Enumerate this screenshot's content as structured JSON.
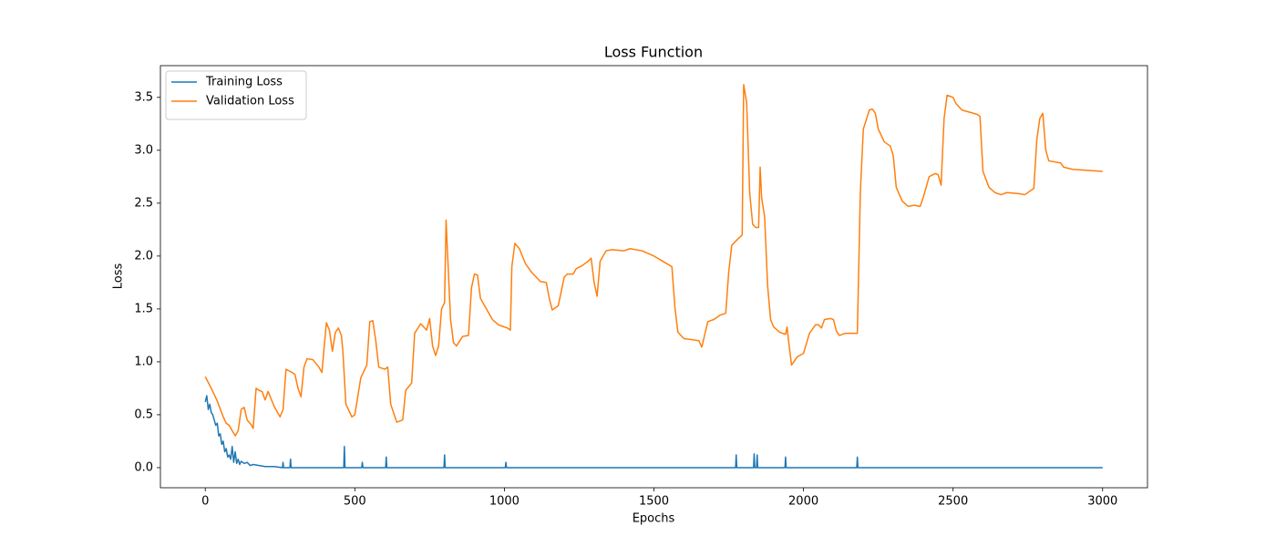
{
  "chart_data": {
    "type": "line",
    "title": "Loss Function",
    "xlabel": "Epochs",
    "ylabel": "Loss",
    "xlim": [
      -150,
      3150
    ],
    "ylim": [
      -0.19,
      3.8
    ],
    "xticks": [
      0,
      500,
      1000,
      1500,
      2000,
      2500,
      3000
    ],
    "yticks": [
      {
        "value": 0,
        "label": "0.0"
      },
      0.5,
      {
        "value": 1,
        "label": "1.0"
      },
      1.5,
      {
        "value": 2,
        "label": "2.0"
      },
      2.5,
      {
        "value": 3,
        "label": "3.0"
      },
      3.5
    ],
    "grid": false,
    "legend": "upper left",
    "series": [
      {
        "name": "Training Loss",
        "color": "#1f77b4",
        "x": [
          0,
          5,
          10,
          15,
          20,
          25,
          30,
          35,
          40,
          45,
          50,
          55,
          60,
          65,
          70,
          75,
          80,
          85,
          90,
          95,
          100,
          105,
          110,
          115,
          120,
          130,
          140,
          150,
          160,
          180,
          200,
          230,
          258,
          260,
          262,
          283,
          285,
          287,
          463,
          465,
          467,
          523,
          525,
          527,
          603,
          605,
          607,
          798,
          800,
          802,
          1003,
          1005,
          1007,
          1773,
          1775,
          1777,
          1833,
          1835,
          1837,
          1843,
          1845,
          1847,
          1938,
          1940,
          1942,
          2178,
          2180,
          2182,
          3000
        ],
        "values": [
          0.62,
          0.68,
          0.55,
          0.6,
          0.52,
          0.5,
          0.45,
          0.4,
          0.42,
          0.3,
          0.32,
          0.22,
          0.25,
          0.15,
          0.18,
          0.1,
          0.12,
          0.08,
          0.2,
          0.05,
          0.15,
          0.04,
          0.08,
          0.03,
          0.06,
          0.04,
          0.05,
          0.02,
          0.03,
          0.02,
          0.01,
          0.01,
          0,
          0.05,
          0,
          0,
          0.08,
          0,
          0,
          0.2,
          0,
          0,
          0.05,
          0,
          0,
          0.1,
          0,
          0,
          0.12,
          0,
          0,
          0.05,
          0,
          0,
          0.12,
          0,
          0,
          0.13,
          0,
          0,
          0.12,
          0,
          0,
          0.1,
          0,
          0,
          0.1,
          0,
          0
        ]
      },
      {
        "name": "Validation Loss",
        "color": "#ff7f0e",
        "x": [
          0,
          20,
          40,
          60,
          70,
          80,
          90,
          100,
          110,
          120,
          130,
          140,
          155,
          160,
          170,
          180,
          190,
          200,
          210,
          230,
          250,
          260,
          270,
          290,
          300,
          310,
          320,
          330,
          340,
          360,
          380,
          390,
          400,
          405,
          415,
          425,
          435,
          445,
          455,
          460,
          470,
          490,
          500,
          520,
          540,
          550,
          560,
          570,
          580,
          600,
          610,
          620,
          640,
          660,
          670,
          690,
          700,
          720,
          740,
          750,
          760,
          770,
          780,
          790,
          800,
          805,
          820,
          830,
          840,
          860,
          880,
          890,
          900,
          910,
          920,
          940,
          960,
          980,
          1000,
          1010,
          1020,
          1025,
          1035,
          1050,
          1070,
          1090,
          1120,
          1140,
          1150,
          1160,
          1180,
          1200,
          1210,
          1230,
          1240,
          1260,
          1280,
          1290,
          1300,
          1310,
          1320,
          1340,
          1360,
          1400,
          1420,
          1460,
          1500,
          1530,
          1560,
          1570,
          1580,
          1600,
          1650,
          1660,
          1680,
          1700,
          1720,
          1740,
          1750,
          1760,
          1780,
          1795,
          1800,
          1810,
          1820,
          1830,
          1840,
          1850,
          1855,
          1860,
          1870,
          1880,
          1890,
          1900,
          1920,
          1940,
          1945,
          1950,
          1960,
          1980,
          2000,
          2020,
          2040,
          2050,
          2060,
          2070,
          2090,
          2100,
          2110,
          2120,
          2140,
          2180,
          2190,
          2200,
          2220,
          2230,
          2240,
          2250,
          2270,
          2290,
          2300,
          2310,
          2330,
          2350,
          2370,
          2390,
          2400,
          2420,
          2440,
          2450,
          2460,
          2470,
          2480,
          2500,
          2510,
          2530,
          2580,
          2590,
          2600,
          2620,
          2640,
          2660,
          2680,
          2720,
          2740,
          2760,
          2770,
          2780,
          2790,
          2800,
          2810,
          2820,
          2860,
          2870,
          2900,
          2950,
          3000
        ],
        "values": [
          0.86,
          0.75,
          0.63,
          0.48,
          0.42,
          0.4,
          0.35,
          0.3,
          0.35,
          0.55,
          0.57,
          0.45,
          0.4,
          0.37,
          0.75,
          0.73,
          0.72,
          0.64,
          0.72,
          0.58,
          0.48,
          0.55,
          0.93,
          0.9,
          0.88,
          0.75,
          0.67,
          0.95,
          1.03,
          1.02,
          0.95,
          0.9,
          1.22,
          1.37,
          1.3,
          1.1,
          1.28,
          1.32,
          1.25,
          1.1,
          0.6,
          0.48,
          0.5,
          0.85,
          0.97,
          1.38,
          1.39,
          1.2,
          0.95,
          0.93,
          0.95,
          0.6,
          0.43,
          0.45,
          0.73,
          0.8,
          1.27,
          1.36,
          1.3,
          1.41,
          1.15,
          1.06,
          1.15,
          1.5,
          1.56,
          2.34,
          1.4,
          1.18,
          1.15,
          1.24,
          1.25,
          1.7,
          1.83,
          1.82,
          1.6,
          1.5,
          1.4,
          1.35,
          1.33,
          1.32,
          1.3,
          1.9,
          2.12,
          2.07,
          1.93,
          1.85,
          1.76,
          1.75,
          1.6,
          1.49,
          1.53,
          1.8,
          1.83,
          1.83,
          1.88,
          1.91,
          1.95,
          1.98,
          1.75,
          1.62,
          1.95,
          2.05,
          2.06,
          2.05,
          2.07,
          2.05,
          2.0,
          1.95,
          1.9,
          1.52,
          1.28,
          1.22,
          1.2,
          1.14,
          1.38,
          1.4,
          1.44,
          1.46,
          1.85,
          2.1,
          2.16,
          2.2,
          3.62,
          3.45,
          2.6,
          2.3,
          2.27,
          2.27,
          2.84,
          2.55,
          2.37,
          1.72,
          1.4,
          1.33,
          1.28,
          1.26,
          1.33,
          1.2,
          0.97,
          1.05,
          1.08,
          1.27,
          1.35,
          1.35,
          1.32,
          1.4,
          1.41,
          1.4,
          1.29,
          1.25,
          1.27,
          1.27,
          2.6,
          3.2,
          3.38,
          3.39,
          3.35,
          3.2,
          3.08,
          3.04,
          2.95,
          2.65,
          2.52,
          2.47,
          2.48,
          2.47,
          2.55,
          2.75,
          2.78,
          2.77,
          2.67,
          3.3,
          3.52,
          3.5,
          3.44,
          3.38,
          3.34,
          3.32,
          2.8,
          2.65,
          2.6,
          2.58,
          2.6,
          2.59,
          2.58,
          2.62,
          2.64,
          3.1,
          3.3,
          3.35,
          3.0,
          2.9,
          2.88,
          2.84,
          2.82,
          2.81,
          2.8
        ]
      }
    ]
  }
}
